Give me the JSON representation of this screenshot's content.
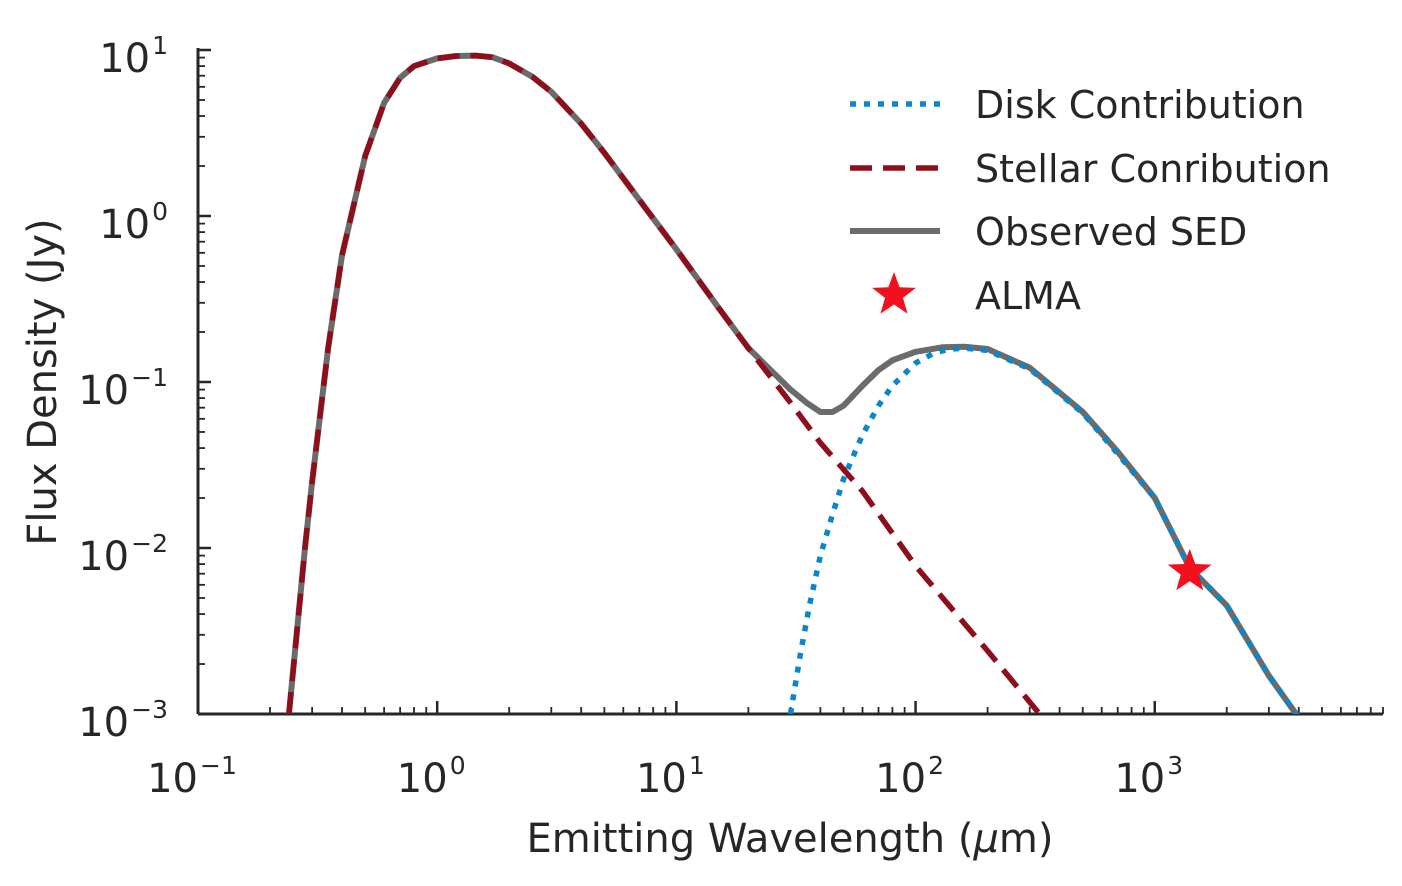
{
  "chart_data": {
    "type": "line",
    "xlabel_prefix": "Emitting Wavelength (",
    "xlabel_unit": "μ",
    "xlabel_suffix": "m)",
    "ylabel": "Flux Density (Jy)",
    "x_scale": "log",
    "y_scale": "log",
    "xlim": [
      0.1,
      9000
    ],
    "ylim": [
      0.001,
      10
    ],
    "x_ticks": [
      {
        "value": 0.1,
        "base": "10",
        "exp": "−1"
      },
      {
        "value": 1,
        "base": "10",
        "exp": "0"
      },
      {
        "value": 10,
        "base": "10",
        "exp": "1"
      },
      {
        "value": 100,
        "base": "10",
        "exp": "2"
      },
      {
        "value": 1000,
        "base": "10",
        "exp": "3"
      }
    ],
    "y_ticks": [
      {
        "value": 0.001,
        "base": "10",
        "exp": "−3"
      },
      {
        "value": 0.01,
        "base": "10",
        "exp": "−2"
      },
      {
        "value": 0.1,
        "base": "10",
        "exp": "−1"
      },
      {
        "value": 1,
        "base": "10",
        "exp": "0"
      },
      {
        "value": 10,
        "base": "10",
        "exp": "1"
      }
    ],
    "grid": false,
    "legend_position": "top-right",
    "series": [
      {
        "name": "Disk Contribution",
        "style": "dotted",
        "color": "#0a86c9",
        "x": [
          30,
          33,
          36,
          40,
          45,
          50,
          55,
          60,
          70,
          80,
          100,
          120,
          140,
          160,
          200,
          300,
          500,
          700,
          1000,
          1400,
          2000,
          3000,
          4000
        ],
        "y": [
          0.001,
          0.0023,
          0.0045,
          0.009,
          0.016,
          0.026,
          0.036,
          0.048,
          0.072,
          0.095,
          0.13,
          0.15,
          0.158,
          0.16,
          0.155,
          0.12,
          0.065,
          0.037,
          0.02,
          0.0076,
          0.0045,
          0.0017,
          0.00095
        ]
      },
      {
        "name": "Stellar Conribution",
        "style": "dashed",
        "color": "#8e0e1c",
        "x": [
          0.24,
          0.26,
          0.28,
          0.3,
          0.35,
          0.4,
          0.5,
          0.6,
          0.7,
          0.8,
          1.0,
          1.2,
          1.45,
          1.7,
          2.0,
          2.5,
          3.0,
          4.0,
          5.0,
          7.0,
          10,
          15,
          20,
          30,
          40,
          60,
          100,
          200,
          330
        ],
        "y": [
          0.001,
          0.0033,
          0.01,
          0.025,
          0.16,
          0.58,
          2.3,
          4.8,
          6.8,
          8.0,
          8.9,
          9.2,
          9.25,
          9.05,
          8.3,
          6.9,
          5.6,
          3.6,
          2.4,
          1.25,
          0.63,
          0.28,
          0.16,
          0.075,
          0.043,
          0.022,
          0.0078,
          0.0024,
          0.001
        ]
      },
      {
        "name": "Observed SED",
        "style": "solid",
        "color": "#6b6b6b",
        "x": [
          0.24,
          0.26,
          0.28,
          0.3,
          0.35,
          0.4,
          0.5,
          0.6,
          0.7,
          0.8,
          1.0,
          1.2,
          1.45,
          1.7,
          2.0,
          2.5,
          3.0,
          4.0,
          5.0,
          7.0,
          10,
          15,
          20,
          30,
          35,
          40,
          45,
          50,
          60,
          70,
          80,
          100,
          130,
          160,
          200,
          300,
          500,
          700,
          1000,
          1400,
          2000,
          3000,
          4000
        ],
        "y": [
          0.001,
          0.0033,
          0.01,
          0.025,
          0.16,
          0.58,
          2.3,
          4.8,
          6.8,
          8.0,
          8.9,
          9.2,
          9.25,
          9.05,
          8.3,
          6.9,
          5.6,
          3.6,
          2.4,
          1.25,
          0.63,
          0.28,
          0.16,
          0.09,
          0.075,
          0.066,
          0.066,
          0.072,
          0.095,
          0.118,
          0.135,
          0.152,
          0.162,
          0.163,
          0.158,
          0.122,
          0.066,
          0.038,
          0.02,
          0.0076,
          0.0045,
          0.0017,
          0.00095
        ]
      },
      {
        "name": "ALMA",
        "style": "marker",
        "marker": "star",
        "color": "#f0101e",
        "x": [
          1400
        ],
        "y": [
          0.0072
        ]
      }
    ]
  }
}
